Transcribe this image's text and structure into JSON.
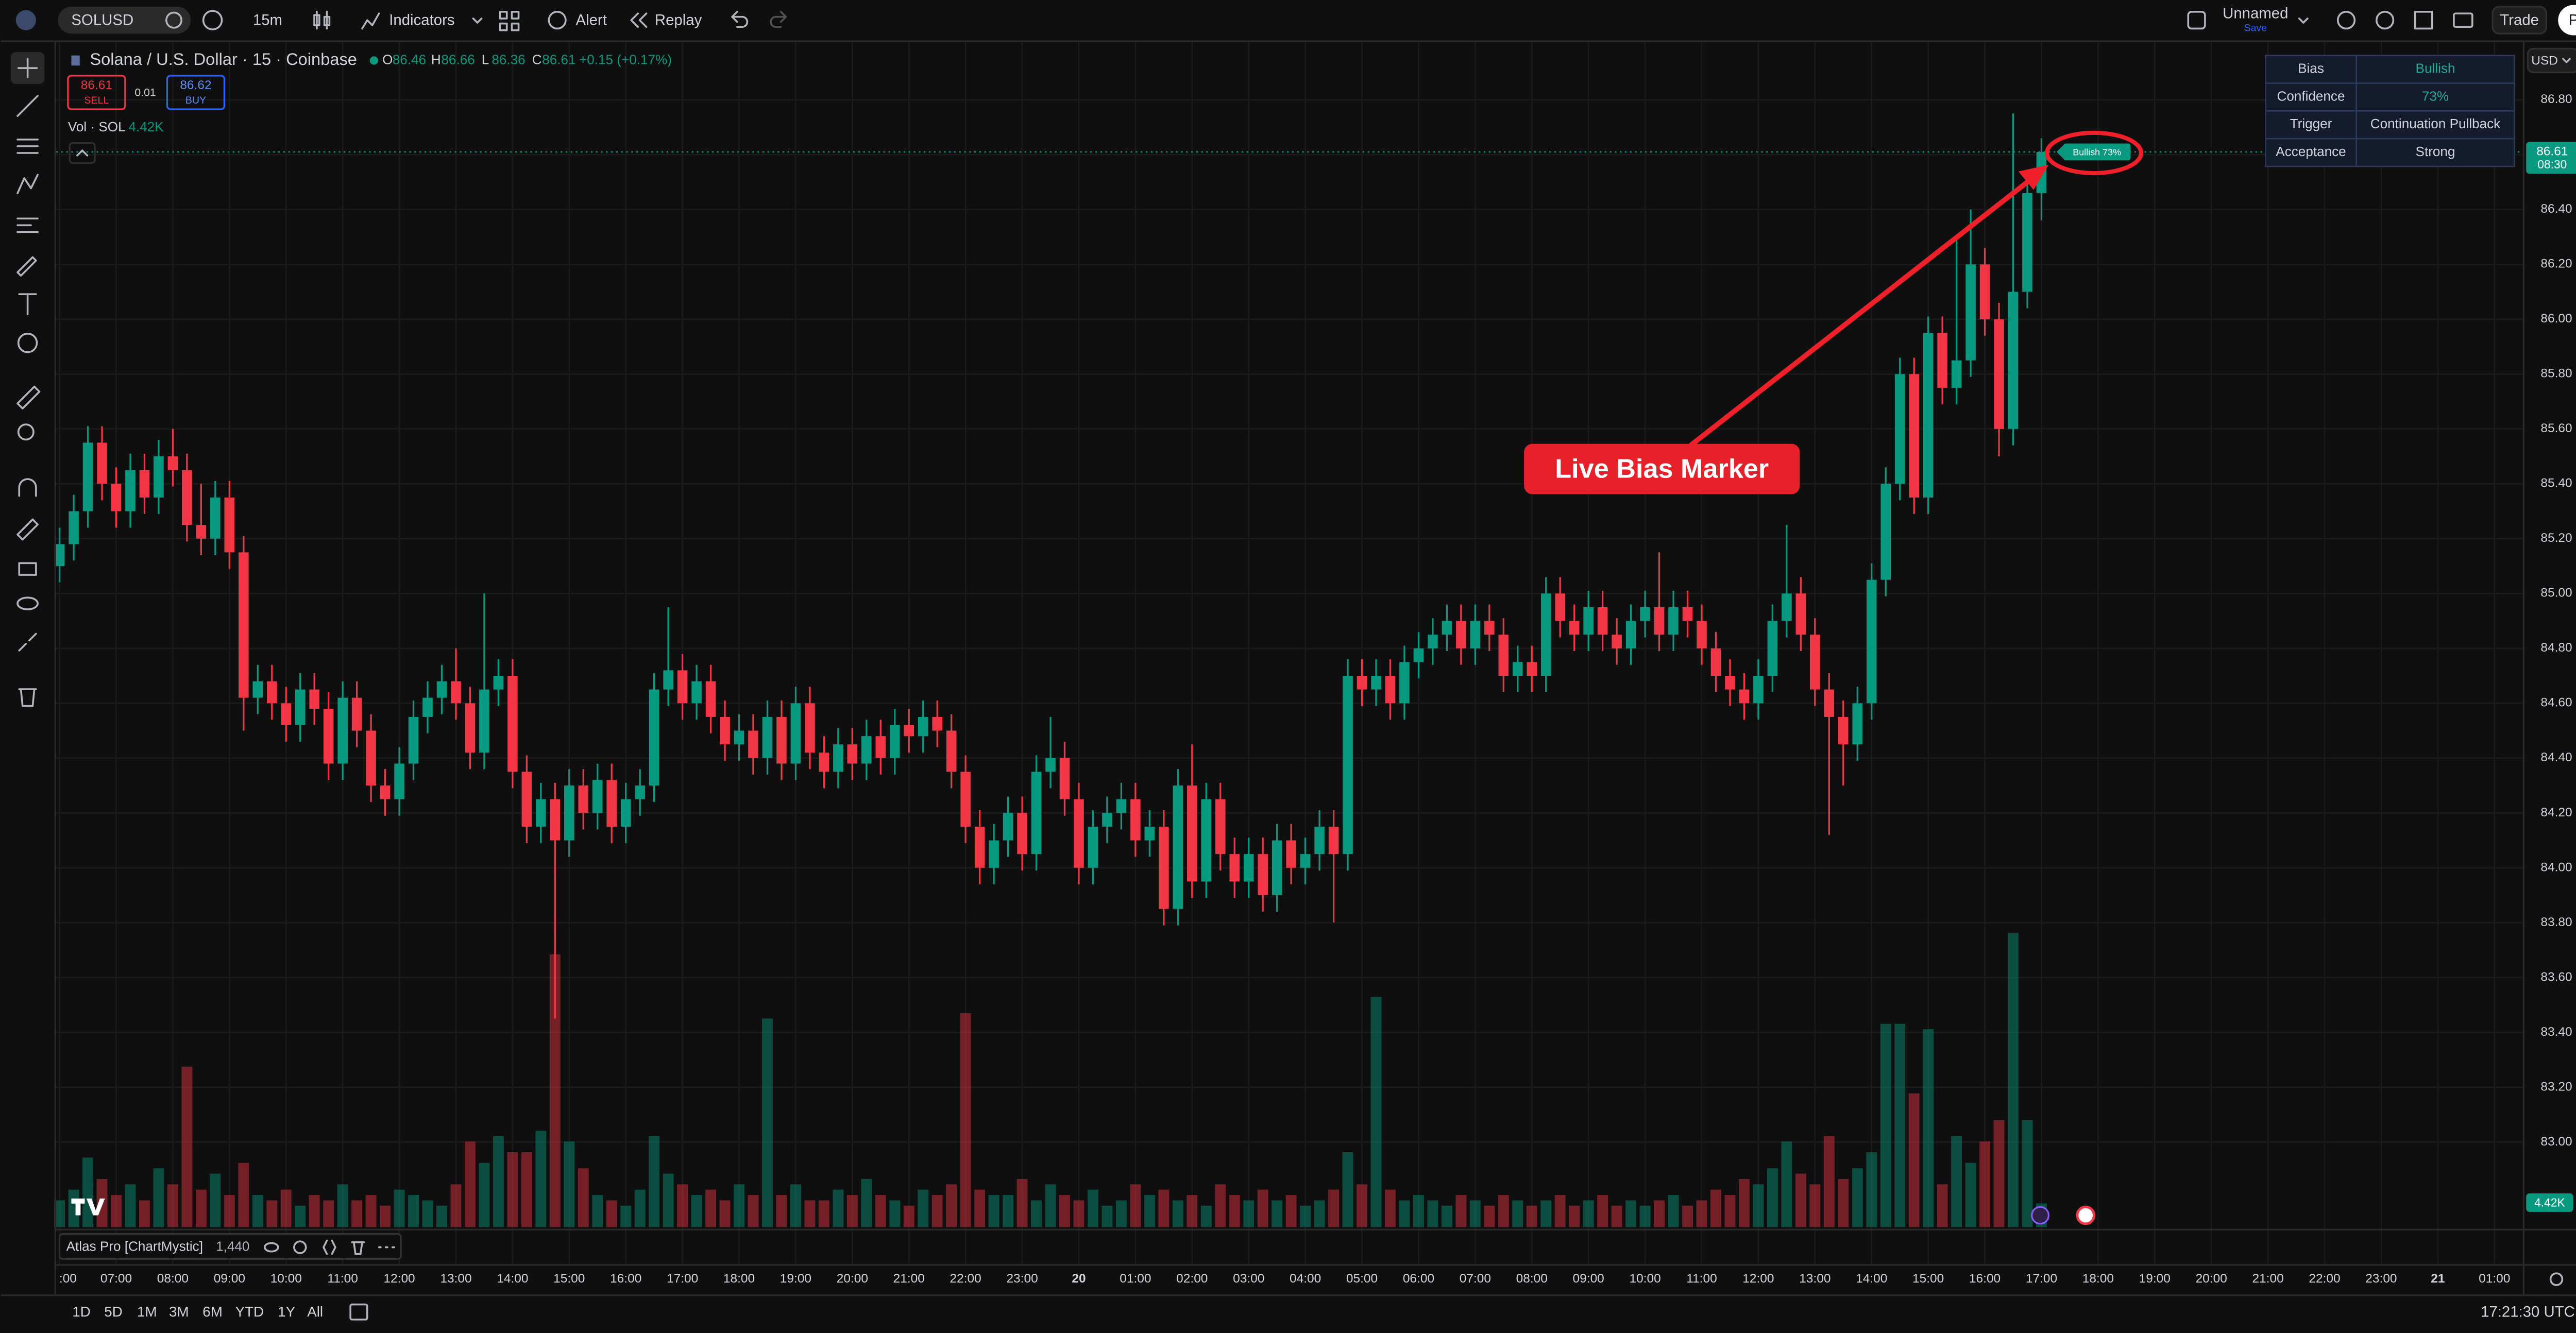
{
  "toolbar": {
    "symbol": "SOLUSD",
    "interval": "15m",
    "indicators": "Indicators",
    "alert": "Alert",
    "replay": "Replay",
    "layout_name": "Unnamed",
    "save": "Save",
    "trade": "Trade",
    "publish": "Publish",
    "currency": "USD"
  },
  "legend": {
    "title": "Solana / U.S. Dollar · 15 · Coinbase",
    "o": "O",
    "h": "H",
    "l": "L",
    "c": "C",
    "change": "+0.15 (+0.17%)",
    "sell_price": "86.61",
    "sell": "SELL",
    "spread": "0.01",
    "buy_price": "86.62",
    "buy": "BUY",
    "vol": "Vol · SOL",
    "vol_value": "4.42K"
  },
  "chart_data": {
    "type": "candlestick",
    "up_color": "#089981",
    "down_color": "#f23645",
    "grid": true,
    "open": [
      85.1,
      85.18,
      85.3,
      85.55,
      85.4,
      85.3,
      85.45,
      85.35,
      85.5,
      85.45,
      85.25,
      85.2,
      85.35,
      85.15,
      84.62,
      84.68,
      84.6,
      84.52,
      84.65,
      84.58,
      84.38,
      84.62,
      84.5,
      84.3,
      84.25,
      84.38,
      84.55,
      84.62,
      84.68,
      84.6,
      84.42,
      84.65,
      84.7,
      84.35,
      84.15,
      84.25,
      84.1,
      84.3,
      84.2,
      84.32,
      84.15,
      84.25,
      84.3,
      84.65,
      84.72,
      84.6,
      84.68,
      84.55,
      84.45,
      84.5,
      84.4,
      84.55,
      84.38,
      84.6,
      84.42,
      84.35,
      84.45,
      84.38,
      84.48,
      84.4,
      84.52,
      84.48,
      84.55,
      84.5,
      84.35,
      84.15,
      84.0,
      84.1,
      84.2,
      84.05,
      84.35,
      84.4,
      84.25,
      84.0,
      84.15,
      84.2,
      84.25,
      84.1,
      84.15,
      83.85,
      84.3,
      83.95,
      84.25,
      84.05,
      83.95,
      84.05,
      83.9,
      84.1,
      84.0,
      84.05,
      84.15,
      84.05,
      84.7,
      84.65,
      84.7,
      84.6,
      84.75,
      84.8,
      84.85,
      84.9,
      84.8,
      84.9,
      84.85,
      84.7,
      84.75,
      84.7,
      85.0,
      84.9,
      84.85,
      84.95,
      84.85,
      84.8,
      84.9,
      84.95,
      84.85,
      84.95,
      84.9,
      84.8,
      84.7,
      84.65,
      84.6,
      84.7,
      84.9,
      85.0,
      84.85,
      84.65,
      84.55,
      84.45,
      84.6,
      85.05,
      85.4,
      85.8,
      85.35,
      85.95,
      85.75,
      85.85,
      86.2,
      86.0,
      85.6,
      86.1,
      86.46
    ],
    "high": [
      85.24,
      85.36,
      85.61,
      85.61,
      85.46,
      85.51,
      85.51,
      85.56,
      85.6,
      85.51,
      85.4,
      85.41,
      85.41,
      85.21,
      84.74,
      84.74,
      84.66,
      84.71,
      84.71,
      84.64,
      84.68,
      84.68,
      84.56,
      84.36,
      84.44,
      84.61,
      84.68,
      84.74,
      84.8,
      84.66,
      85.0,
      84.76,
      84.76,
      84.41,
      84.31,
      84.31,
      84.36,
      84.36,
      84.38,
      84.38,
      84.31,
      84.36,
      84.71,
      84.95,
      84.78,
      84.74,
      84.74,
      84.61,
      84.56,
      84.56,
      84.61,
      84.61,
      84.66,
      84.66,
      84.48,
      84.51,
      84.51,
      84.54,
      84.54,
      84.58,
      84.58,
      84.61,
      84.61,
      84.56,
      84.41,
      84.21,
      84.16,
      84.26,
      84.26,
      84.41,
      84.55,
      84.46,
      84.31,
      84.21,
      84.26,
      84.31,
      84.31,
      84.21,
      84.21,
      84.36,
      84.45,
      84.31,
      84.31,
      84.11,
      84.11,
      84.11,
      84.16,
      84.16,
      84.11,
      84.21,
      84.21,
      84.76,
      84.76,
      84.76,
      84.76,
      84.81,
      84.86,
      84.91,
      84.96,
      84.96,
      84.96,
      84.96,
      84.91,
      84.81,
      84.81,
      85.06,
      85.06,
      84.96,
      85.01,
      85.01,
      84.91,
      84.96,
      85.01,
      85.15,
      85.01,
      85.01,
      84.96,
      84.86,
      84.76,
      84.71,
      84.76,
      84.96,
      85.25,
      85.06,
      84.91,
      84.71,
      84.61,
      84.66,
      85.11,
      85.46,
      85.86,
      85.86,
      86.01,
      86.01,
      86.3,
      86.4,
      86.26,
      86.06,
      86.75,
      86.52,
      86.66
    ],
    "low": [
      85.04,
      85.12,
      85.24,
      85.34,
      85.24,
      85.24,
      85.29,
      85.29,
      85.39,
      85.19,
      85.14,
      85.14,
      85.09,
      84.5,
      84.56,
      84.54,
      84.46,
      84.46,
      84.52,
      84.32,
      84.32,
      84.44,
      84.24,
      84.19,
      84.19,
      84.32,
      84.49,
      84.56,
      84.54,
      84.36,
      84.36,
      84.59,
      84.29,
      84.09,
      84.09,
      83.45,
      84.04,
      84.14,
      84.14,
      84.09,
      84.09,
      84.19,
      84.24,
      84.59,
      84.54,
      84.54,
      84.49,
      84.39,
      84.39,
      84.34,
      84.34,
      84.32,
      84.32,
      84.36,
      84.29,
      84.29,
      84.32,
      84.32,
      84.34,
      84.34,
      84.42,
      84.42,
      84.44,
      84.29,
      84.09,
      83.94,
      83.94,
      84.04,
      83.99,
      83.99,
      84.29,
      84.19,
      83.94,
      83.94,
      84.09,
      84.14,
      84.04,
      84.04,
      83.79,
      83.79,
      83.89,
      83.89,
      83.99,
      83.89,
      83.89,
      83.84,
      83.84,
      83.94,
      83.94,
      83.99,
      83.8,
      83.99,
      84.59,
      84.59,
      84.54,
      84.54,
      84.69,
      84.74,
      84.79,
      84.74,
      84.74,
      84.79,
      84.64,
      84.64,
      84.64,
      84.64,
      84.84,
      84.79,
      84.79,
      84.79,
      84.74,
      84.74,
      84.84,
      84.79,
      84.79,
      84.84,
      84.74,
      84.64,
      84.59,
      84.54,
      84.54,
      84.64,
      84.84,
      84.79,
      84.59,
      84.12,
      84.3,
      84.39,
      84.54,
      84.99,
      85.34,
      85.29,
      85.29,
      85.69,
      85.69,
      85.79,
      85.94,
      85.5,
      85.54,
      86.04,
      86.36
    ],
    "close": [
      85.18,
      85.3,
      85.55,
      85.4,
      85.3,
      85.45,
      85.35,
      85.5,
      85.45,
      85.25,
      85.2,
      85.35,
      85.15,
      84.62,
      84.68,
      84.6,
      84.52,
      84.65,
      84.58,
      84.38,
      84.62,
      84.5,
      84.3,
      84.25,
      84.38,
      84.55,
      84.62,
      84.68,
      84.6,
      84.42,
      84.65,
      84.7,
      84.35,
      84.15,
      84.25,
      84.1,
      84.3,
      84.2,
      84.32,
      84.15,
      84.25,
      84.3,
      84.65,
      84.72,
      84.6,
      84.68,
      84.55,
      84.45,
      84.5,
      84.4,
      84.55,
      84.38,
      84.6,
      84.42,
      84.35,
      84.45,
      84.38,
      84.48,
      84.4,
      84.52,
      84.48,
      84.55,
      84.5,
      84.35,
      84.15,
      84.0,
      84.1,
      84.2,
      84.05,
      84.35,
      84.4,
      84.25,
      84.0,
      84.15,
      84.2,
      84.25,
      84.1,
      84.15,
      83.85,
      84.3,
      83.95,
      84.25,
      84.05,
      83.95,
      84.05,
      83.9,
      84.1,
      84.0,
      84.05,
      84.15,
      84.05,
      84.7,
      84.65,
      84.7,
      84.6,
      84.75,
      84.8,
      84.85,
      84.9,
      84.8,
      84.9,
      84.85,
      84.7,
      84.75,
      84.7,
      85.0,
      84.9,
      84.85,
      84.95,
      84.85,
      84.8,
      84.9,
      84.95,
      84.85,
      84.95,
      84.9,
      84.8,
      84.7,
      84.65,
      84.6,
      84.7,
      84.9,
      85.0,
      84.85,
      84.65,
      84.55,
      84.45,
      84.6,
      85.05,
      85.4,
      85.8,
      85.35,
      85.95,
      85.75,
      85.85,
      86.2,
      86.0,
      85.6,
      86.1,
      86.46,
      86.61
    ],
    "volume": [
      5,
      7,
      13,
      9,
      6,
      8,
      5,
      11,
      8,
      30,
      7,
      10,
      6,
      12,
      6,
      5,
      7,
      4,
      6,
      5,
      8,
      5,
      6,
      4,
      7,
      6,
      5,
      4,
      8,
      16,
      12,
      17,
      14,
      14,
      18,
      51,
      16,
      11,
      6,
      5,
      4,
      7,
      17,
      10,
      8,
      6,
      7,
      5,
      8,
      6,
      39,
      6,
      8,
      5,
      5,
      7,
      6,
      9,
      6,
      5,
      4,
      7,
      6,
      8,
      40,
      7,
      6,
      6,
      9,
      5,
      8,
      6,
      5,
      7,
      4,
      5,
      8,
      6,
      7,
      5,
      6,
      4,
      8,
      6,
      5,
      7,
      5,
      6,
      4,
      5,
      7,
      14,
      8,
      43,
      7,
      5,
      6,
      5,
      4,
      6,
      5,
      4,
      6,
      5,
      4,
      5,
      6,
      4,
      5,
      6,
      4,
      5,
      4,
      5,
      6,
      4,
      5,
      7,
      6,
      9,
      8,
      11,
      16,
      10,
      8,
      17,
      9,
      11,
      14,
      38,
      38,
      25,
      37,
      8,
      17,
      12,
      16,
      20,
      55,
      20,
      4.42
    ],
    "xlim": [
      0,
      174
    ],
    "xticks": [
      {
        "value": 0,
        "label": ":00"
      },
      {
        "value": 4,
        "label": "07:00"
      },
      {
        "value": 8,
        "label": "08:00"
      },
      {
        "value": 12,
        "label": "09:00"
      },
      {
        "value": 16,
        "label": "10:00"
      },
      {
        "value": 20,
        "label": "11:00"
      },
      {
        "value": 24,
        "label": "12:00"
      },
      {
        "value": 28,
        "label": "13:00"
      },
      {
        "value": 32,
        "label": "14:00"
      },
      {
        "value": 36,
        "label": "15:00"
      },
      {
        "value": 40,
        "label": "16:00"
      },
      {
        "value": 44,
        "label": "17:00"
      },
      {
        "value": 48,
        "label": "18:00"
      },
      {
        "value": 52,
        "label": "19:00"
      },
      {
        "value": 56,
        "label": "20:00"
      },
      {
        "value": 60,
        "label": "21:00"
      },
      {
        "value": 64,
        "label": "22:00"
      },
      {
        "value": 68,
        "label": "23:00"
      },
      {
        "value": 72,
        "label": "20"
      },
      {
        "value": 76,
        "label": "01:00"
      },
      {
        "value": 80,
        "label": "02:00"
      },
      {
        "value": 84,
        "label": "03:00"
      },
      {
        "value": 88,
        "label": "04:00"
      },
      {
        "value": 92,
        "label": "05:00"
      },
      {
        "value": 96,
        "label": "06:00"
      },
      {
        "value": 100,
        "label": "07:00"
      },
      {
        "value": 104,
        "label": "08:00"
      },
      {
        "value": 108,
        "label": "09:00"
      },
      {
        "value": 112,
        "label": "10:00"
      },
      {
        "value": 116,
        "label": "11:00"
      },
      {
        "value": 120,
        "label": "12:00"
      },
      {
        "value": 124,
        "label": "13:00"
      },
      {
        "value": 128,
        "label": "14:00"
      },
      {
        "value": 132,
        "label": "15:00"
      },
      {
        "value": 136,
        "label": "16:00"
      },
      {
        "value": 140,
        "label": "17:00"
      },
      {
        "value": 144,
        "label": "18:00"
      },
      {
        "value": 148,
        "label": "19:00"
      },
      {
        "value": 152,
        "label": "20:00"
      },
      {
        "value": 156,
        "label": "21:00"
      },
      {
        "value": 160,
        "label": "22:00"
      },
      {
        "value": 164,
        "label": "23:00"
      },
      {
        "value": 168,
        "label": "21"
      },
      {
        "value": 172,
        "label": "01:00"
      }
    ],
    "ylim": [
      82.69,
      86.98
    ],
    "yticks": [
      {
        "value": 83,
        "label": "83.00"
      },
      {
        "value": 83.2,
        "label": "83.20"
      },
      {
        "value": 83.4,
        "label": "83.40"
      },
      {
        "value": 83.6,
        "label": "83.60"
      },
      {
        "value": 83.8,
        "label": "83.80"
      },
      {
        "value": 84,
        "label": "84.00"
      },
      {
        "value": 84.2,
        "label": "84.20"
      },
      {
        "value": 84.4,
        "label": "84.40"
      },
      {
        "value": 84.6,
        "label": "84.60"
      },
      {
        "value": 84.8,
        "label": "84.80"
      },
      {
        "value": 85,
        "label": "85.00"
      },
      {
        "value": 85.2,
        "label": "85.20"
      },
      {
        "value": 85.4,
        "label": "85.40"
      },
      {
        "value": 85.6,
        "label": "85.60"
      },
      {
        "value": 85.8,
        "label": "85.80"
      },
      {
        "value": 86,
        "label": "86.00"
      },
      {
        "value": 86.2,
        "label": "86.20"
      },
      {
        "value": 86.4,
        "label": "86.40"
      },
      {
        "value": 86.6,
        "label": "86.60"
      },
      {
        "value": 86.8,
        "label": "86.80"
      }
    ],
    "y2lim": [
      0,
      220
    ],
    "countdown": "08:30",
    "volume_tag": "4.42K",
    "marker": "Bullish 73%"
  },
  "bias_table": {
    "rows": [
      [
        "Bias",
        "Bullish"
      ],
      [
        "Confidence",
        "73%"
      ],
      [
        "Trigger",
        "Continuation Pullback"
      ],
      [
        "Acceptance",
        "Strong"
      ]
    ]
  },
  "annotation": {
    "text": "Live Bias Marker"
  },
  "indicator": {
    "name": "Atlas Pro [ChartMystic]",
    "value": "1,440"
  },
  "bottom_bar": {
    "ranges": [
      "1D",
      "5D",
      "1M",
      "3M",
      "6M",
      "YTD",
      "1Y",
      "All"
    ],
    "clock": "17:21:30 UTC"
  }
}
